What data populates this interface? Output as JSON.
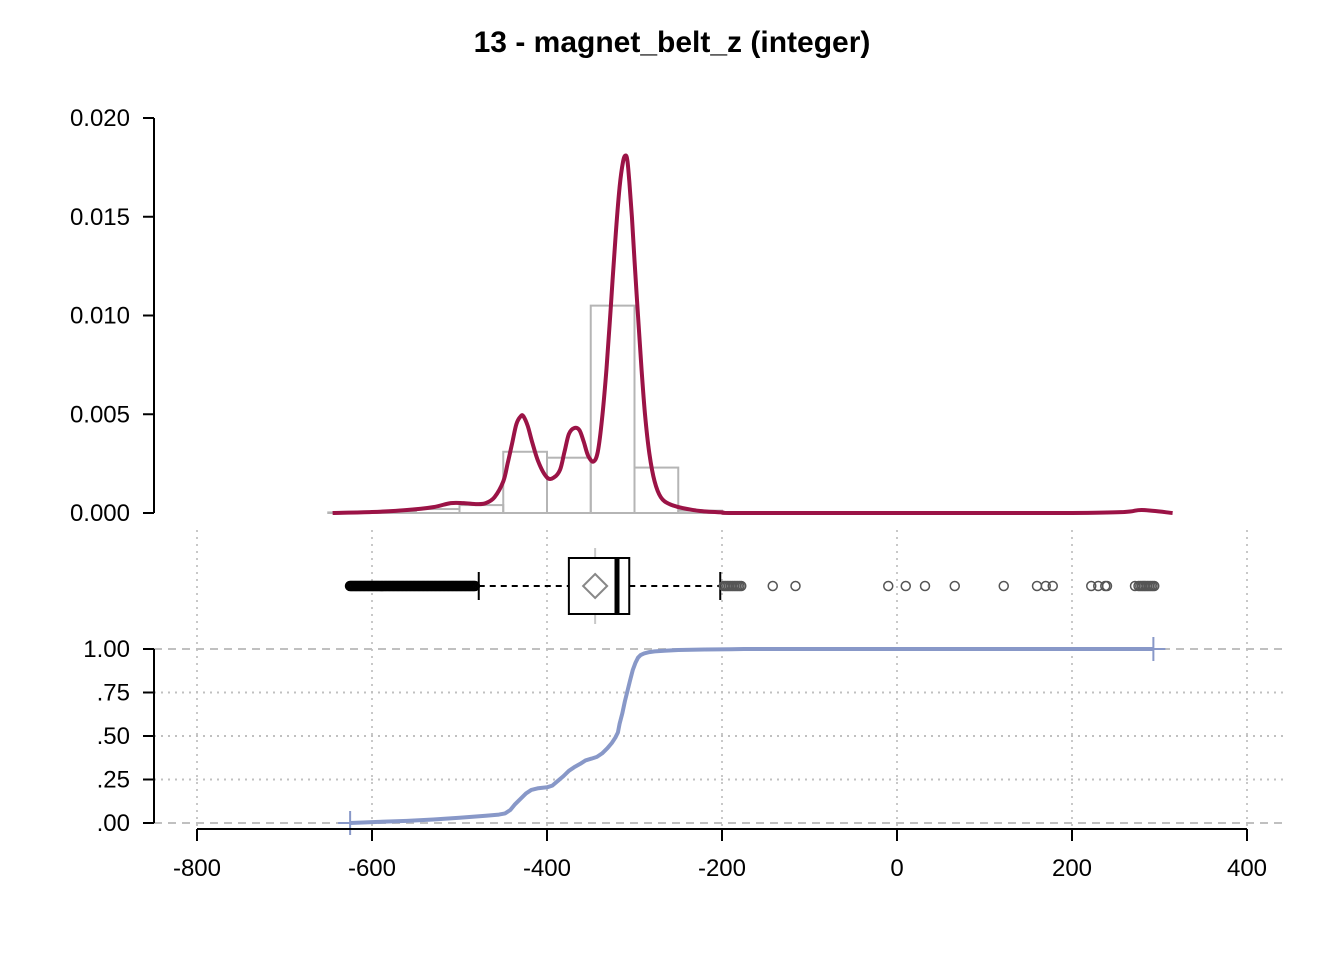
{
  "chart_data": {
    "title": "13 - magnet_belt_z (integer)",
    "xlim": [
      -800,
      400
    ],
    "x_ticks": [
      "-800",
      "-600",
      "-400",
      "-200",
      "0",
      "200",
      "400"
    ],
    "x_tick_values": [
      -800,
      -600,
      -400,
      -200,
      0,
      200,
      400
    ],
    "panels": [
      {
        "type": "histogram_density",
        "ylim": [
          0,
          0.02
        ],
        "y_ticks": [
          "0.000",
          "0.005",
          "0.010",
          "0.015",
          "0.020"
        ],
        "y_tick_values": [
          0,
          0.005,
          0.01,
          0.015,
          0.02
        ],
        "histogram": {
          "bin_edges": [
            -650,
            -600,
            -550,
            -500,
            -450,
            -400,
            -350,
            -300,
            -250,
            -200,
            -150
          ],
          "densities": [
            3e-05,
            0.0001,
            0.0002,
            0.0004,
            0.0031,
            0.0028,
            0.0105,
            0.0023,
            0.00012,
            2e-05
          ],
          "color": "#b5b5b5"
        },
        "density": {
          "color": "#9b1346",
          "x": [
            -645,
            -600,
            -560,
            -530,
            -510,
            -495,
            -480,
            -470,
            -460,
            -450,
            -445,
            -440,
            -435,
            -430,
            -427,
            -422,
            -417,
            -410,
            -400,
            -392,
            -385,
            -380,
            -375,
            -369,
            -363,
            -358,
            -353,
            -347,
            -342,
            -337,
            -332,
            -327,
            -322,
            -317,
            -313,
            -310,
            -308,
            -306,
            -303,
            -300,
            -296,
            -292,
            -288,
            -283,
            -277,
            -270,
            -260,
            -245,
            -225,
            -200,
            -180,
            0,
            200,
            260,
            280,
            315
          ],
          "y": [
            0.0,
            5e-05,
            0.00015,
            0.0003,
            0.0005,
            0.0005,
            0.00045,
            0.0005,
            0.0008,
            0.0016,
            0.0025,
            0.0035,
            0.0045,
            0.0049,
            0.0049,
            0.0044,
            0.0036,
            0.0026,
            0.0018,
            0.0018,
            0.0022,
            0.0031,
            0.004,
            0.0043,
            0.0042,
            0.0036,
            0.0029,
            0.0026,
            0.0031,
            0.0048,
            0.0073,
            0.0105,
            0.0138,
            0.0165,
            0.0178,
            0.0181,
            0.0178,
            0.0168,
            0.015,
            0.0128,
            0.01,
            0.0073,
            0.005,
            0.003,
            0.0016,
            0.0008,
            0.00045,
            0.00025,
            0.0001,
            3e-05,
            0.0,
            0.0,
            0.0,
            5e-05,
            0.00015,
            0.0
          ]
        }
      },
      {
        "type": "boxplot",
        "q1": -375,
        "median": -320,
        "q3": -306,
        "whisker_low": -478,
        "whisker_high": -202,
        "mean": -345,
        "outliers_low_range": [
          -625,
          -482
        ],
        "outliers_high": [
          -198,
          -196,
          -194,
          -192,
          -190,
          -188,
          -186,
          -184,
          -182,
          -180,
          -178,
          -142,
          -116,
          -10,
          10,
          32,
          66,
          122,
          160,
          170,
          178,
          222,
          230,
          238,
          240,
          272,
          276,
          278,
          280,
          282,
          284,
          286,
          288,
          290,
          292,
          294
        ],
        "color": "#888888"
      },
      {
        "type": "ecdf",
        "ylim": [
          0,
          1
        ],
        "y_ticks": [
          ".00",
          ".25",
          ".50",
          ".75",
          "1.00"
        ],
        "y_tick_values": [
          0,
          0.25,
          0.5,
          0.75,
          1
        ],
        "min_x": -625,
        "max_x": 293,
        "color": "#8898c8",
        "x": [
          -625,
          -600,
          -560,
          -530,
          -500,
          -470,
          -455,
          -448,
          -442,
          -437,
          -430,
          -424,
          -418,
          -410,
          -400,
          -394,
          -388,
          -381,
          -375,
          -369,
          -362,
          -356,
          -349,
          -343,
          -337,
          -331,
          -326,
          -322,
          -319,
          -317,
          -314,
          -311,
          -308,
          -305,
          -302,
          -299,
          -296,
          -293,
          -289,
          -283,
          -277,
          -266,
          -250,
          -220,
          -190,
          -175,
          0,
          293
        ],
        "y": [
          0,
          0.005,
          0.012,
          0.02,
          0.03,
          0.042,
          0.048,
          0.055,
          0.075,
          0.105,
          0.14,
          0.17,
          0.19,
          0.2,
          0.205,
          0.215,
          0.24,
          0.27,
          0.3,
          0.32,
          0.34,
          0.36,
          0.37,
          0.38,
          0.4,
          0.43,
          0.46,
          0.49,
          0.52,
          0.57,
          0.63,
          0.7,
          0.76,
          0.82,
          0.88,
          0.92,
          0.95,
          0.965,
          0.975,
          0.982,
          0.986,
          0.99,
          0.994,
          0.997,
          0.999,
          1.0,
          1.0,
          1.0
        ]
      }
    ]
  }
}
